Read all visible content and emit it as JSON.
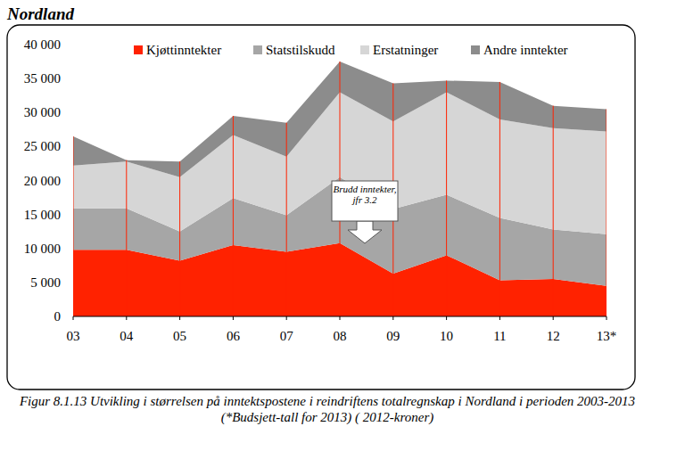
{
  "chart_data": {
    "type": "area",
    "stacked": true,
    "title": "Nordland",
    "caption": "Figur 8.1.13 Utvikling i størrelsen på inntektspostene i reindriftens totalregnskap i Nordland i perioden 2003-2013 (*Budsjett-tall for 2013) ( 2012-kroner)",
    "annotation": "Brudd inntekter, jfr 3.2",
    "categories": [
      "03",
      "04",
      "05",
      "06",
      "07",
      "08",
      "09",
      "10",
      "11",
      "12",
      "13*"
    ],
    "series": [
      {
        "name": "Kjøttinntekter",
        "color": "#ff2200",
        "values": [
          9800,
          9800,
          8200,
          10500,
          9500,
          10800,
          6300,
          9000,
          5300,
          5500,
          4500
        ]
      },
      {
        "name": "Statstilskudd",
        "color": "#a6a6a6",
        "values": [
          6100,
          6100,
          4300,
          6900,
          5400,
          9700,
          9500,
          8900,
          9200,
          7300,
          7600
        ]
      },
      {
        "name": "Erstatninger",
        "color": "#d6d6d6",
        "values": [
          6300,
          6900,
          8000,
          9300,
          8600,
          12500,
          12900,
          15100,
          14500,
          14900,
          15100
        ]
      },
      {
        "name": "Andre inntekter",
        "color": "#8c8c8c",
        "values": [
          4300,
          200,
          2300,
          2800,
          5000,
          4500,
          5600,
          1700,
          5500,
          3300,
          3300
        ]
      }
    ],
    "ylim": [
      0,
      40000
    ],
    "yticks": [
      0,
      {
        "value": 5000,
        "label": "5 000"
      },
      {
        "value": 10000,
        "label": "10 000"
      },
      {
        "value": 15000,
        "label": "15 000"
      },
      {
        "value": 20000,
        "label": "20 000"
      },
      {
        "value": 25000,
        "label": "25 000"
      },
      {
        "value": 30000,
        "label": "30 000"
      },
      {
        "value": 35000,
        "label": "35 000"
      },
      {
        "value": 40000,
        "label": "40 000"
      }
    ],
    "grid": false,
    "legend": "top"
  }
}
